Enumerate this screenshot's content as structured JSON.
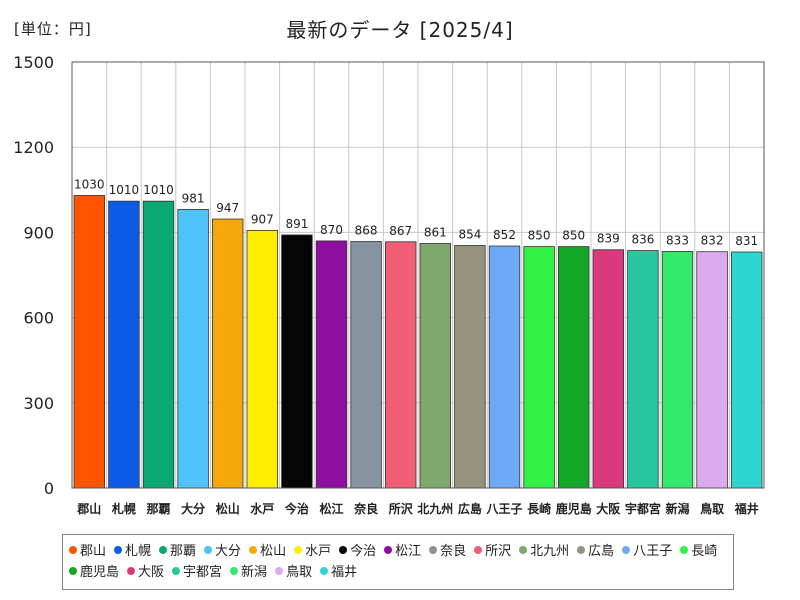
{
  "header": {
    "unit_label": "[単位：円]",
    "title": "最新のデータ [2025/4]"
  },
  "chart_data": {
    "type": "bar",
    "title": "最新のデータ [2025/4]",
    "ylabel": "[単位：円]",
    "xlabel": "",
    "ylim": [
      0,
      1500
    ],
    "yticks": [
      0,
      300,
      600,
      900,
      1200,
      1500
    ],
    "grid": true,
    "legend_position": "bottom",
    "categories": [
      "郡山",
      "札幌",
      "那覇",
      "大分",
      "松山",
      "水戸",
      "今治",
      "松江",
      "奈良",
      "所沢",
      "北九州",
      "広島",
      "八王子",
      "長崎",
      "鹿児島",
      "大阪",
      "宇都宮",
      "新潟",
      "鳥取",
      "福井"
    ],
    "values": [
      1030,
      1010,
      1010,
      981,
      947,
      907,
      891,
      870,
      868,
      867,
      861,
      854,
      852,
      850,
      850,
      839,
      836,
      833,
      832,
      831
    ],
    "colors": [
      "#ff5500",
      "#0b5be6",
      "#0aa872",
      "#4fc3f7",
      "#f4a90b",
      "#ffee00",
      "#050505",
      "#8e0ea0",
      "#8693a2",
      "#f25e73",
      "#7ea86e",
      "#95937d",
      "#6fa8f5",
      "#33f044",
      "#14a626",
      "#d93a7d",
      "#28c69e",
      "#33e86a",
      "#dcaaf0",
      "#2ed6d2"
    ]
  }
}
